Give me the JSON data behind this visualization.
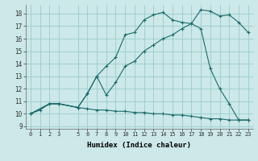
{
  "xlabel": "Humidex (Indice chaleur)",
  "bg_color": "#cce8e8",
  "grid_color": "#99cccc",
  "line_color": "#1a6b6b",
  "xlim": [
    -0.5,
    23.5
  ],
  "ylim": [
    8.8,
    18.7
  ],
  "xticks": [
    0,
    1,
    2,
    3,
    5,
    6,
    7,
    8,
    9,
    10,
    11,
    12,
    13,
    14,
    15,
    16,
    17,
    18,
    19,
    20,
    21,
    22,
    23
  ],
  "yticks": [
    9,
    10,
    11,
    12,
    13,
    14,
    15,
    16,
    17,
    18
  ],
  "line1_x": [
    0,
    1,
    2,
    3,
    5,
    6,
    7,
    8,
    9,
    10,
    11,
    12,
    13,
    14,
    15,
    16,
    17,
    18,
    19,
    20,
    21,
    22,
    23
  ],
  "line1_y": [
    10.0,
    10.3,
    10.8,
    10.8,
    10.5,
    10.4,
    10.3,
    10.3,
    10.2,
    10.2,
    10.1,
    10.1,
    10.0,
    10.0,
    9.9,
    9.9,
    9.8,
    9.7,
    9.6,
    9.6,
    9.5,
    9.5,
    9.5
  ],
  "line2_x": [
    0,
    2,
    3,
    5,
    6,
    7,
    8,
    9,
    10,
    11,
    12,
    13,
    14,
    15,
    16,
    17,
    18,
    19,
    20,
    21,
    22,
    23
  ],
  "line2_y": [
    10.0,
    10.8,
    10.8,
    10.5,
    11.6,
    13.0,
    13.8,
    14.5,
    16.3,
    16.5,
    17.5,
    17.9,
    18.1,
    17.5,
    17.3,
    17.2,
    18.3,
    18.2,
    17.8,
    17.9,
    17.3,
    16.5
  ],
  "line3_x": [
    0,
    2,
    3,
    5,
    6,
    7,
    8,
    9,
    10,
    11,
    12,
    13,
    14,
    15,
    16,
    17,
    18,
    19,
    20,
    21,
    22,
    23
  ],
  "line3_y": [
    10.0,
    10.8,
    10.8,
    10.5,
    11.6,
    13.0,
    11.5,
    12.5,
    13.8,
    14.2,
    15.0,
    15.5,
    16.0,
    16.3,
    16.8,
    17.2,
    16.8,
    13.6,
    12.0,
    10.8,
    9.5,
    9.5
  ]
}
